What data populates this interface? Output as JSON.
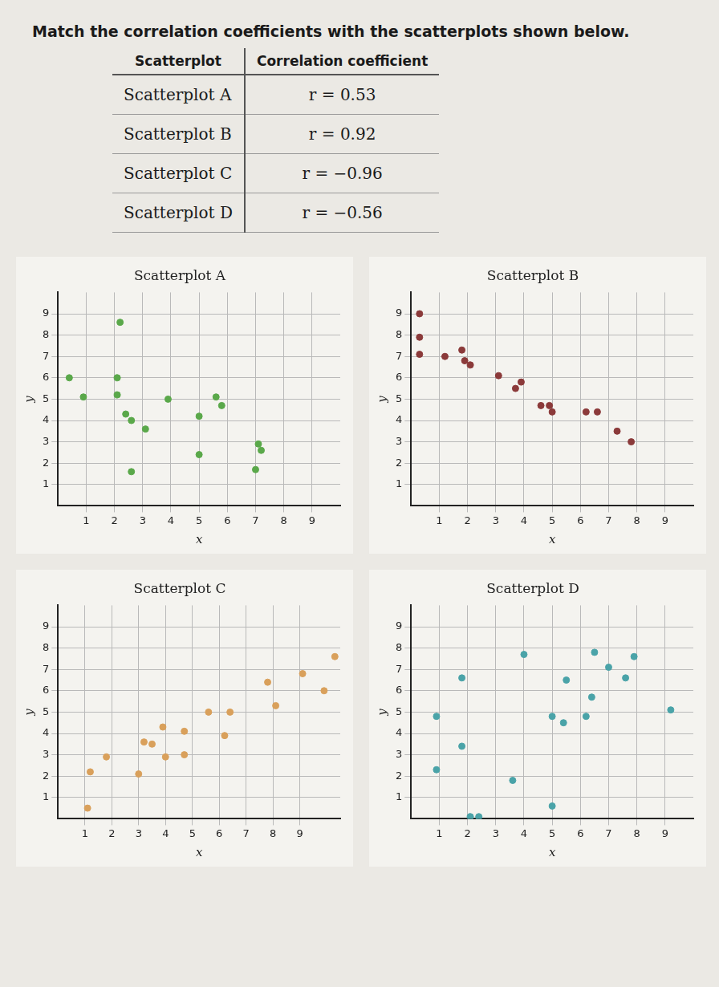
{
  "heading": "Match the correlation coefficients with the scatterplots shown below.",
  "table": {
    "header": [
      "Scatterplot",
      "Correlation coefficient"
    ],
    "rows": [
      [
        "Scatterplot A",
        "r = 0.53"
      ],
      [
        "Scatterplot B",
        "r = 0.92"
      ],
      [
        "Scatterplot C",
        "r = −0.96"
      ],
      [
        "Scatterplot D",
        "r = −0.56"
      ]
    ]
  },
  "chart_data": [
    {
      "type": "scatter",
      "title": "Scatterplot A",
      "x_label": "x",
      "y_label": "y",
      "color": "#5aa84a",
      "grid": true,
      "xlim": [
        0,
        10
      ],
      "ylim": [
        0,
        10
      ],
      "xticks": [
        1,
        2,
        3,
        4,
        5,
        6,
        7,
        8,
        9
      ],
      "yticks": [
        1,
        2,
        3,
        4,
        5,
        6,
        7,
        8,
        9
      ],
      "x": [
        0.4,
        2.1,
        0.9,
        2.1,
        3.9,
        5.6,
        5.8,
        2.4,
        2.6,
        3.1,
        5.0,
        2.2,
        7.1,
        7.2,
        5.0,
        2.6,
        7.0
      ],
      "values": [
        6.0,
        6.0,
        5.1,
        5.2,
        5.0,
        5.1,
        4.7,
        4.3,
        4.0,
        3.6,
        4.2,
        8.6,
        2.9,
        2.6,
        2.4,
        1.6,
        1.7
      ]
    },
    {
      "type": "scatter",
      "title": "Scatterplot B",
      "x_label": "x",
      "y_label": "y",
      "color": "#8b3a3a",
      "grid": true,
      "xlim": [
        0,
        10
      ],
      "ylim": [
        0,
        10
      ],
      "xticks": [
        1,
        2,
        3,
        4,
        5,
        6,
        7,
        8,
        9
      ],
      "yticks": [
        1,
        2,
        3,
        4,
        5,
        6,
        7,
        8,
        9
      ],
      "x": [
        0.3,
        0.3,
        0.3,
        1.2,
        1.8,
        1.9,
        2.1,
        3.1,
        3.7,
        3.9,
        4.6,
        5.0,
        4.9,
        6.2,
        6.6,
        7.3,
        7.8
      ],
      "values": [
        9.0,
        7.9,
        7.1,
        7.0,
        7.3,
        6.8,
        6.6,
        6.1,
        5.5,
        5.8,
        4.7,
        4.4,
        4.7,
        4.4,
        4.4,
        3.5,
        3.0
      ]
    },
    {
      "type": "scatter",
      "title": "Scatterplot C",
      "x_label": "x",
      "y_label": "y",
      "color": "#d9a05b",
      "grid": true,
      "xlim": [
        0,
        10.5
      ],
      "ylim": [
        0,
        10
      ],
      "xticks": [
        1,
        2,
        3,
        4,
        5,
        6,
        7,
        8,
        9
      ],
      "yticks": [
        1,
        2,
        3,
        4,
        5,
        6,
        7,
        8,
        9
      ],
      "x": [
        1.1,
        1.2,
        1.8,
        3.0,
        3.2,
        3.5,
        3.9,
        4.0,
        4.7,
        4.7,
        6.2,
        5.6,
        6.4,
        7.8,
        8.1,
        9.1,
        9.9,
        10.3
      ],
      "values": [
        0.5,
        2.2,
        2.9,
        2.1,
        3.6,
        3.5,
        4.3,
        2.9,
        3.0,
        4.1,
        3.9,
        5.0,
        5.0,
        6.4,
        5.3,
        6.8,
        6.0,
        7.6
      ]
    },
    {
      "type": "scatter",
      "title": "Scatterplot D",
      "x_label": "x",
      "y_label": "y",
      "color": "#4aa3a8",
      "grid": true,
      "xlim": [
        0,
        10
      ],
      "ylim": [
        0,
        10
      ],
      "xticks": [
        1,
        2,
        3,
        4,
        5,
        6,
        7,
        8,
        9
      ],
      "yticks": [
        1,
        2,
        3,
        4,
        5,
        6,
        7,
        8,
        9
      ],
      "x": [
        4.0,
        6.5,
        7.9,
        7.0,
        7.6,
        1.8,
        5.5,
        6.4,
        0.9,
        5.0,
        5.4,
        6.2,
        9.2,
        1.8,
        0.9,
        3.6,
        5.0,
        2.1,
        2.4
      ],
      "values": [
        7.7,
        7.8,
        7.6,
        7.1,
        6.6,
        6.6,
        6.5,
        5.7,
        4.8,
        4.8,
        4.5,
        4.8,
        5.1,
        3.4,
        2.3,
        1.8,
        0.6,
        0.1,
        0.1
      ]
    }
  ]
}
